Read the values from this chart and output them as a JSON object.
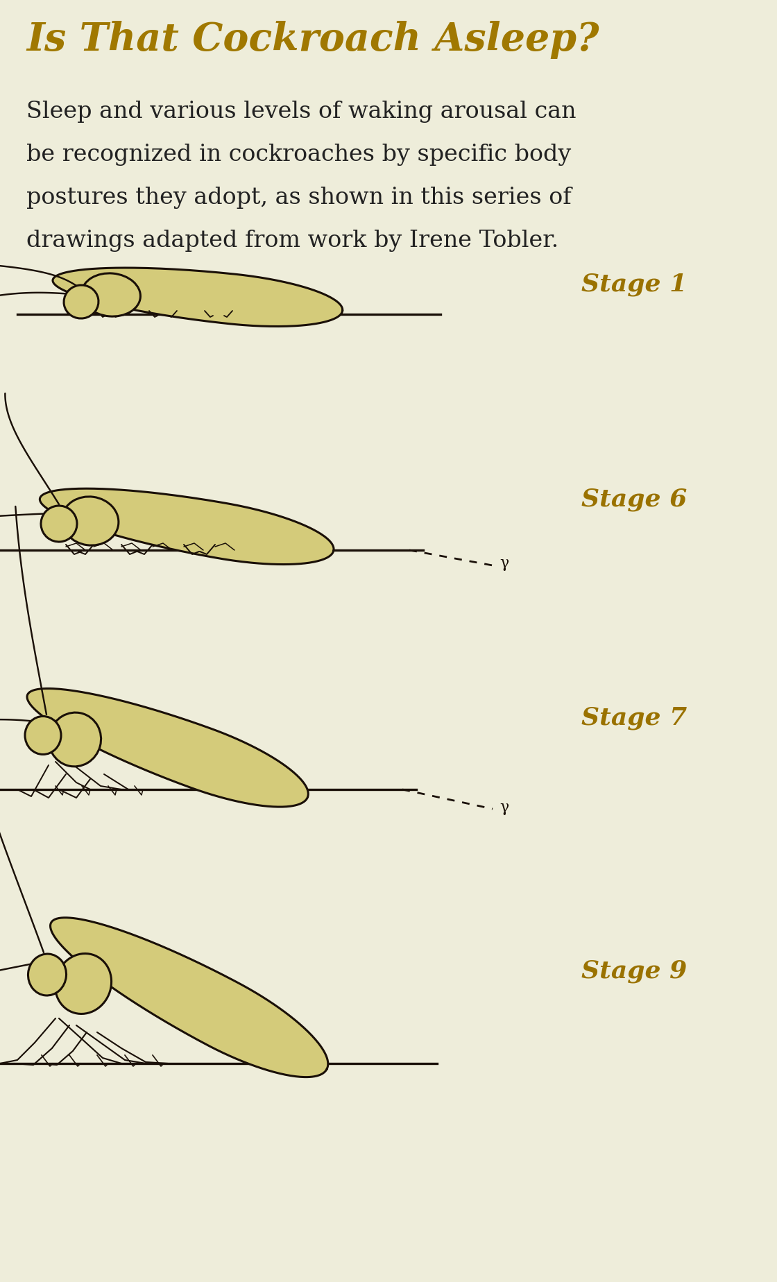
{
  "bg_color": "#eeedda",
  "title": "Is That Cockroach Asleep?",
  "title_color": "#a07800",
  "title_fontsize": 40,
  "body_text_lines": [
    "Sleep and various levels of waking arousal can",
    "be recognized in cockroaches by specific body",
    "postures they adopt, as shown in this series of",
    "drawings adapted from work by Irene Tobler."
  ],
  "body_color": "#222222",
  "body_fontsize": 24,
  "stage_label_color": "#9a7200",
  "stage_label_fontsize": 26,
  "stages": [
    "Stage 1",
    "Stage 6",
    "Stage 7",
    "Stage 9"
  ],
  "cockroach_fill": "#d4cb7a",
  "cockroach_fill2": "#ccc070",
  "line_color": "#1a1008",
  "line_width": 2.2,
  "fig_width": 11.2,
  "fig_height": 18.48,
  "dpi": 100
}
